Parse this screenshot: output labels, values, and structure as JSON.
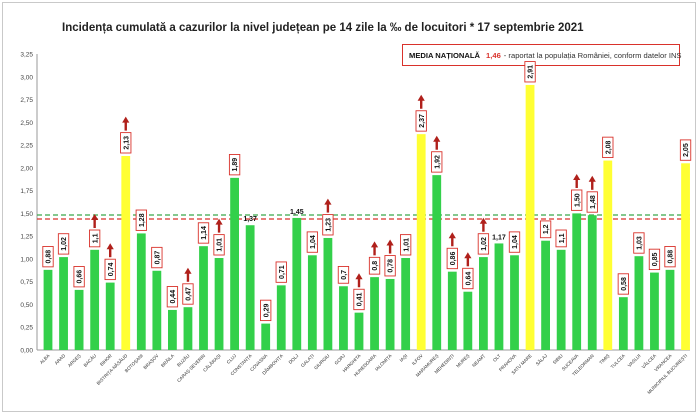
{
  "chart_data": {
    "type": "bar",
    "title": "Incidența cumulată a cazurilor la nivel județean pe 14 zile la ‰ de locuitori * 17 septembrie 2021",
    "ylim": [
      0,
      3.25
    ],
    "y_ticks": [
      "0,00",
      "0,25",
      "0,50",
      "0,75",
      "1,00",
      "1,25",
      "1,50",
      "1,75",
      "2,00",
      "2,25",
      "2,50",
      "2,75",
      "3,00",
      "3,25"
    ],
    "grid": false,
    "legend_position": "top-right",
    "national_average": {
      "label": "MEDIA NAȚIONALĂ",
      "value_label": "1,46",
      "note": "- raportat la populația României, conform datelor INS",
      "value": 1.46
    },
    "colors": {
      "normal": "#33d04a",
      "high": "#ffff33",
      "arrow": "#b0201b",
      "label_border": "#d9322b",
      "line_red": "#d9322b",
      "line_green": "#3aa84a"
    },
    "categories": [
      "ALBA",
      "ARAD",
      "ARGEȘ",
      "BACĂU",
      "BIHOR",
      "BISTRIȚA-NĂSĂUD",
      "BOTOȘANI",
      "BRAȘOV",
      "BRĂILA",
      "BUZĂU",
      "CARAȘ-SEVERIN",
      "CĂLĂRAȘI",
      "CLUJ",
      "CONSTANȚA",
      "COVASNA",
      "DÂMBOVIȚA",
      "DOLJ",
      "GALAȚI",
      "GIURGIU",
      "GORJ",
      "HARGHITA",
      "HUNEDOARA",
      "IALOMIȚA",
      "IAȘI",
      "ILFOV",
      "MARAMUREȘ",
      "MEHEDINȚI",
      "MUREȘ",
      "NEAMȚ",
      "OLT",
      "PRAHOVA",
      "SATU MARE",
      "SĂLAJ",
      "SIBIU",
      "SUCEAVA",
      "TELEORMAN",
      "TIMIȘ",
      "TULCEA",
      "VASLUI",
      "VÂLCEA",
      "VRANCEA",
      "MUNICIPIUL BUCUREȘTI"
    ],
    "values": [
      0.88,
      1.02,
      0.66,
      1.1,
      0.74,
      2.13,
      1.28,
      0.87,
      0.44,
      0.47,
      1.14,
      1.01,
      1.89,
      1.37,
      0.29,
      0.71,
      1.45,
      1.04,
      1.23,
      0.7,
      0.41,
      0.8,
      0.78,
      1.01,
      2.37,
      1.92,
      0.86,
      0.64,
      1.02,
      1.17,
      1.04,
      2.91,
      1.2,
      1.1,
      1.5,
      1.48,
      2.08,
      0.58,
      1.03,
      0.85,
      0.88,
      2.05
    ],
    "value_labels": [
      "0,88",
      "1,02",
      "0,66",
      "1,1",
      "0,74",
      "2,13",
      "1,28",
      "0,87",
      "0,44",
      "0,47",
      "1,14",
      "1,01",
      "1,89",
      "1,37",
      "0,29",
      "0,71",
      "1,45",
      "1,04",
      "1,23",
      "0,7",
      "0,41",
      "0,8",
      "0,78",
      "1,01",
      "2,37",
      "1,92",
      "0,86",
      "0,64",
      "1,02",
      "1,17",
      "1,04",
      "2,91",
      "1,2",
      "1,1",
      "1,50",
      "1,48",
      "2,08",
      "0,58",
      "1,03",
      "0,85",
      "0,88",
      "2,05"
    ],
    "label_boxed": [
      true,
      true,
      true,
      true,
      true,
      true,
      true,
      true,
      true,
      true,
      true,
      true,
      true,
      false,
      true,
      true,
      true,
      true,
      true,
      true,
      true,
      true,
      true,
      true,
      true,
      true,
      true,
      true,
      true,
      true,
      true,
      true,
      true,
      true,
      true,
      true,
      true,
      true,
      true,
      true,
      true,
      true
    ],
    "label_rotated": [
      true,
      true,
      true,
      true,
      true,
      true,
      true,
      true,
      true,
      true,
      true,
      true,
      true,
      false,
      true,
      true,
      false,
      true,
      true,
      true,
      true,
      true,
      true,
      true,
      true,
      true,
      true,
      true,
      true,
      false,
      true,
      true,
      true,
      true,
      true,
      true,
      true,
      true,
      true,
      true,
      true,
      true
    ],
    "highlighted": [
      false,
      false,
      false,
      false,
      false,
      true,
      false,
      false,
      false,
      false,
      false,
      false,
      false,
      false,
      false,
      false,
      false,
      false,
      false,
      false,
      false,
      false,
      false,
      false,
      true,
      false,
      false,
      false,
      false,
      false,
      false,
      true,
      false,
      false,
      false,
      false,
      true,
      false,
      false,
      false,
      false,
      true
    ],
    "trend_up": [
      false,
      false,
      false,
      true,
      true,
      true,
      false,
      false,
      false,
      true,
      false,
      true,
      false,
      false,
      false,
      false,
      false,
      false,
      true,
      false,
      true,
      true,
      true,
      false,
      true,
      true,
      true,
      true,
      true,
      false,
      false,
      false,
      false,
      false,
      true,
      true,
      false,
      false,
      false,
      false,
      false,
      false
    ]
  }
}
